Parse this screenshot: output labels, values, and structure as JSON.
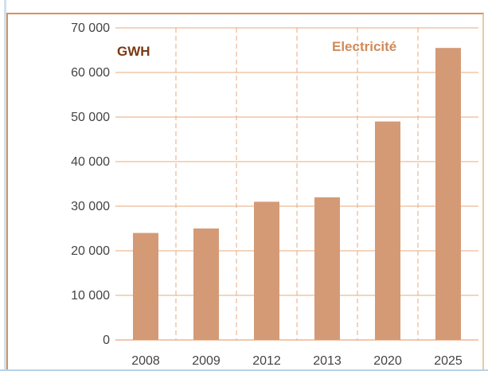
{
  "colors": {
    "bar": "#d49a76",
    "grid": "#e9a87c",
    "axis_text": "#444444",
    "unit_label": "#7a3a12",
    "title": "#cf8a5a"
  },
  "chart_data": {
    "type": "bar",
    "title": "Electricité",
    "ylabel": "GWH",
    "xlabel": "",
    "categories": [
      "2008",
      "2009",
      "2012",
      "2013",
      "2020",
      "2025"
    ],
    "values": [
      24000,
      25000,
      31000,
      32000,
      49000,
      65500
    ],
    "ylim": [
      0,
      70000
    ],
    "yticks": [
      "0",
      "10 000",
      "20 000",
      "30 000",
      "40 000",
      "50 000",
      "60 000",
      "70 000"
    ],
    "grid": true,
    "legend": "none"
  }
}
